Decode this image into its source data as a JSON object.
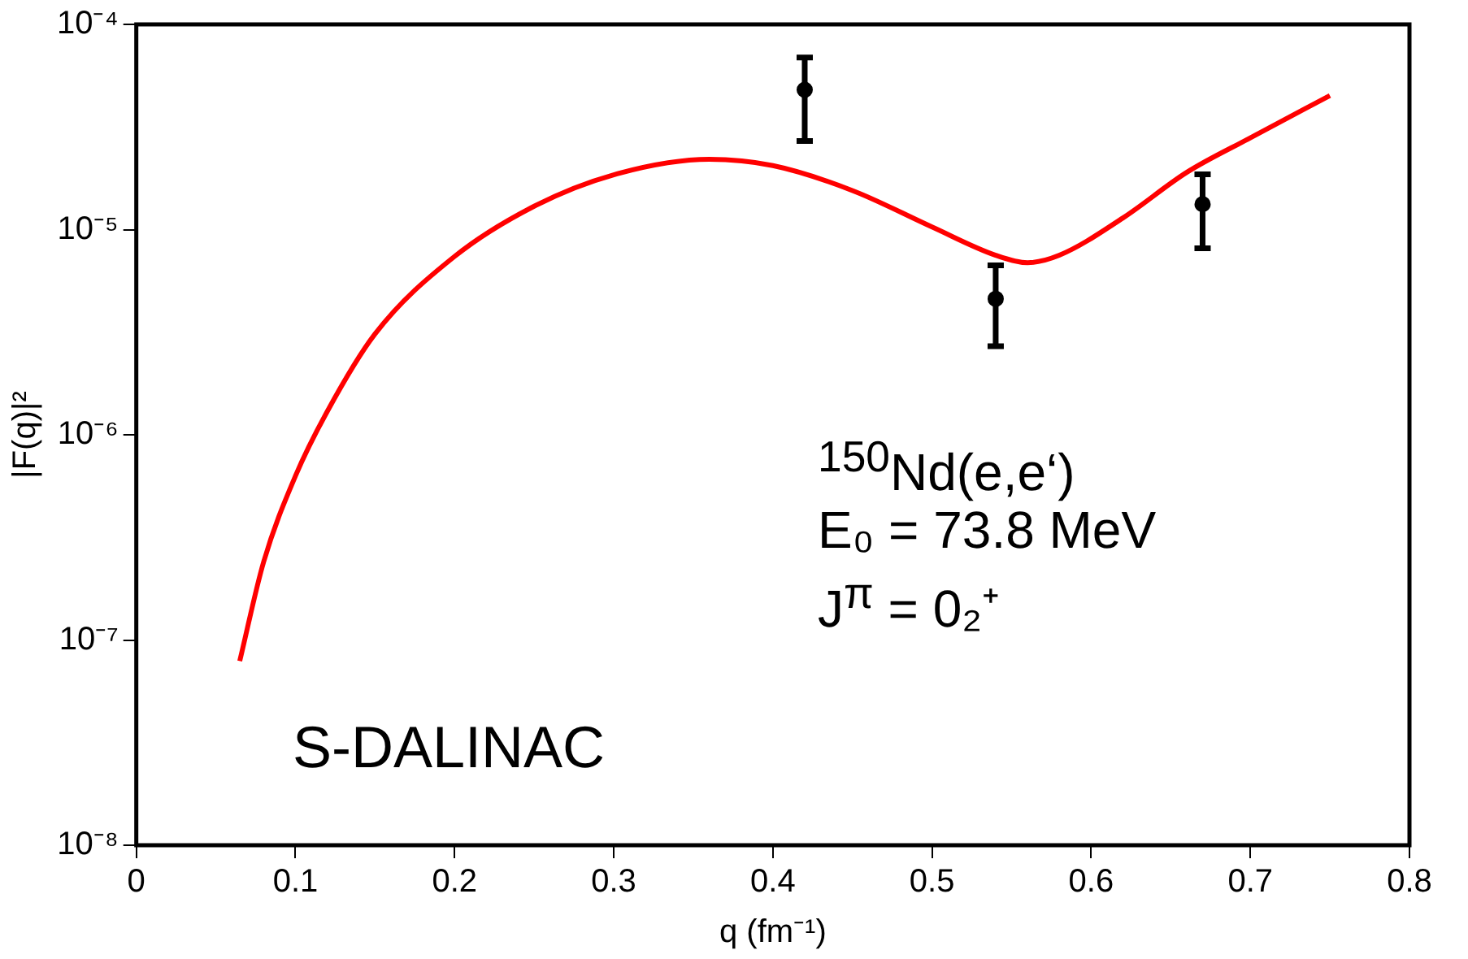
{
  "chart_data": {
    "type": "line",
    "xlabel": "q (fm⁻¹)",
    "ylabel": "|F(q)|²",
    "log": "y",
    "grid": false,
    "legend": false,
    "xlim": [
      0,
      0.8
    ],
    "xticks": [
      0,
      0.1,
      0.2,
      0.3,
      0.4,
      0.5,
      0.6,
      0.7,
      0.8
    ],
    "ylim": [
      1e-08,
      0.0001
    ],
    "yticks": [
      {
        "value": 1e-08,
        "label": "10⁻⁸"
      },
      {
        "value": 1e-07,
        "label": "10⁻⁷"
      },
      {
        "value": 1e-06,
        "label": "10⁻⁶"
      },
      {
        "value": 1e-05,
        "label": "10⁻⁵"
      },
      {
        "value": 0.0001,
        "label": "10⁻⁴"
      }
    ],
    "series": [
      {
        "color": "#ff0000",
        "marker": "none",
        "line_style": "solid",
        "x": [
          0.065,
          0.08,
          0.1,
          0.12,
          0.15,
          0.2,
          0.25,
          0.3,
          0.36,
          0.4,
          0.45,
          0.5,
          0.54,
          0.56,
          0.58,
          0.62,
          0.66,
          0.7,
          0.75
        ],
        "values": [
          7.9e-08,
          2.4e-07,
          6.3e-07,
          1.3e-06,
          3.1e-06,
          7.4e-06,
          1.3e-05,
          1.85e-05,
          2.2e-05,
          2.05e-05,
          1.55e-05,
          1.03e-05,
          7.5e-06,
          6.9e-06,
          7.5e-06,
          1.14e-05,
          1.9e-05,
          2.8e-05,
          4.5e-05
        ]
      },
      {
        "type": "scatter",
        "color": "#000000",
        "marker": "circle",
        "x": [
          0.42,
          0.54,
          0.67
        ],
        "values": [
          4.8e-05,
          4.6e-06,
          1.33e-05
        ],
        "errors": [
          [
            2.7e-05,
            6.9e-05
          ],
          [
            2.7e-06,
            6.7e-06
          ],
          [
            8.1e-06,
            1.86e-05
          ]
        ]
      }
    ],
    "annotations": [
      "$^{150}$Nd(e,e‘)",
      "E₀ = 73.8 MeV",
      "J$^{π}$ = 0₂⁺",
      "S-DALINAC"
    ]
  }
}
